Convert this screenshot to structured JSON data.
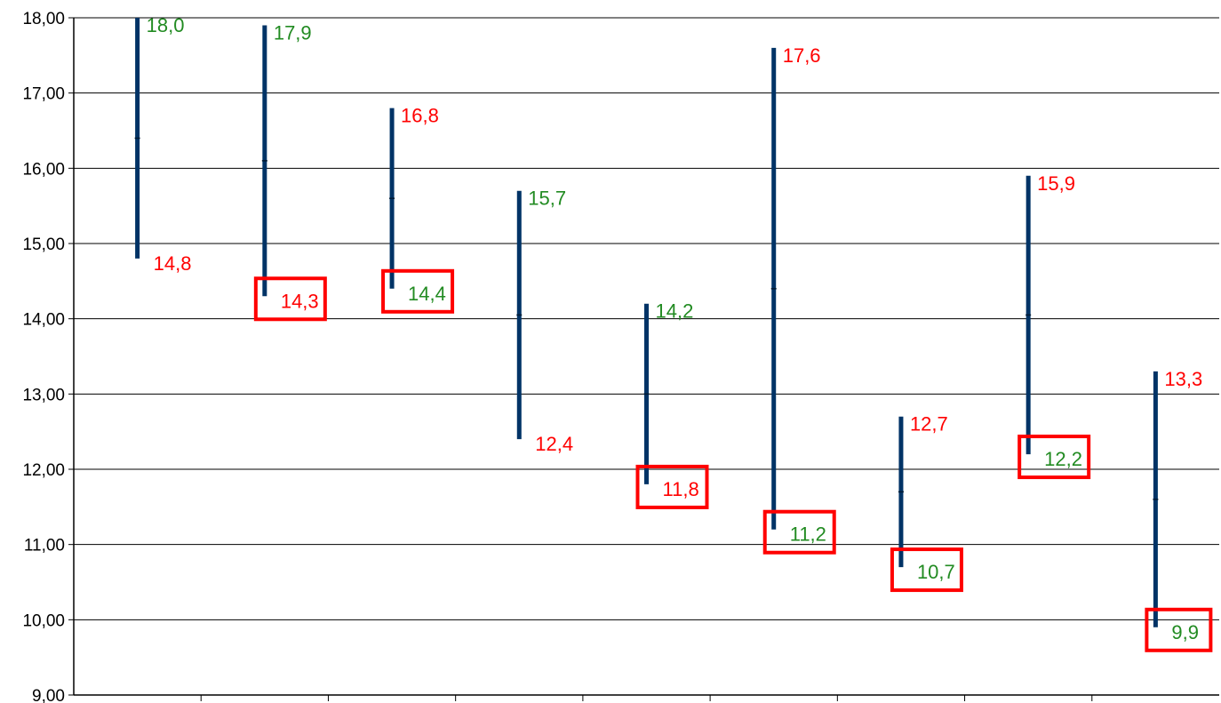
{
  "chart_data": {
    "type": "hi-lo",
    "title": "",
    "xlabel": "",
    "ylabel": "",
    "ylim": [
      9,
      18
    ],
    "yticks": [
      "9,00",
      "10,00",
      "11,00",
      "12,00",
      "13,00",
      "14,00",
      "15,00",
      "16,00",
      "17,00",
      "18,00"
    ],
    "grid": true,
    "bar_color": "#003366",
    "highlight_color": "#ff0000",
    "series": [
      {
        "values": [
          {
            "high": 18.0,
            "low": 14.8,
            "mid": 16.4,
            "high_label": "18,0",
            "low_label": "14,8",
            "high_color": "#228b22",
            "low_color": "#ff0000",
            "high_boxed": false,
            "low_boxed": false
          },
          {
            "high": 17.9,
            "low": 14.3,
            "mid": 16.1,
            "high_label": "17,9",
            "low_label": "14,3",
            "high_color": "#228b22",
            "low_color": "#ff0000",
            "high_boxed": false,
            "low_boxed": true
          },
          {
            "high": 16.8,
            "low": 14.4,
            "mid": 15.6,
            "high_label": "16,8",
            "low_label": "14,4",
            "high_color": "#ff0000",
            "low_color": "#228b22",
            "high_boxed": false,
            "low_boxed": true
          },
          {
            "high": 15.7,
            "low": 12.4,
            "mid": 14.05,
            "high_label": "15,7",
            "low_label": "12,4",
            "high_color": "#228b22",
            "low_color": "#ff0000",
            "high_boxed": false,
            "low_boxed": false
          },
          {
            "high": 14.2,
            "low": 11.8,
            "mid": 13.0,
            "high_label": "14,2",
            "low_label": "11,8",
            "high_color": "#228b22",
            "low_color": "#ff0000",
            "high_boxed": false,
            "low_boxed": true
          },
          {
            "high": 17.6,
            "low": 11.2,
            "mid": 14.4,
            "high_label": "17,6",
            "low_label": "11,2",
            "high_color": "#ff0000",
            "low_color": "#228b22",
            "high_boxed": false,
            "low_boxed": true
          },
          {
            "high": 12.7,
            "low": 10.7,
            "mid": 11.7,
            "high_label": "12,7",
            "low_label": "10,7",
            "high_color": "#ff0000",
            "low_color": "#228b22",
            "high_boxed": false,
            "low_boxed": true
          },
          {
            "high": 15.9,
            "low": 12.2,
            "mid": 14.05,
            "high_label": "15,9",
            "low_label": "12,2",
            "high_color": "#ff0000",
            "low_color": "#228b22",
            "high_boxed": false,
            "low_boxed": true
          },
          {
            "high": 13.3,
            "low": 9.9,
            "mid": 11.6,
            "high_label": "13,3",
            "low_label": "9,9",
            "high_color": "#ff0000",
            "low_color": "#228b22",
            "high_boxed": false,
            "low_boxed": true
          }
        ]
      }
    ]
  }
}
